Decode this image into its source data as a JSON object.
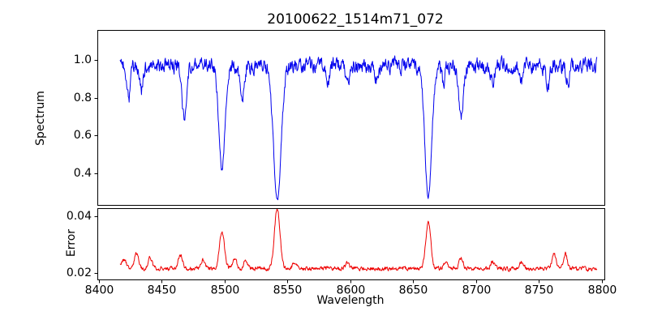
{
  "chart_data": [
    {
      "type": "line",
      "title": "20100622_1514m71_072",
      "ylabel": "Spectrum",
      "color": "#0000ee",
      "xlim": [
        8399,
        8802
      ],
      "ylim": [
        0.23,
        1.16
      ],
      "x_range": [
        8417,
        8796
      ],
      "ytick_values": [
        0.4,
        0.6,
        0.8,
        1.0
      ],
      "ytick_labels": [
        "0.4",
        "0.6",
        "0.8",
        "1.0"
      ],
      "continuum": 0.97,
      "noise_sigma": 0.022,
      "absorption_lines": [
        {
          "center": 8424,
          "min": 0.8,
          "width": 1.4
        },
        {
          "center": 8434,
          "min": 0.84,
          "width": 1.3
        },
        {
          "center": 8468,
          "min": 0.7,
          "width": 1.8
        },
        {
          "center": 8498,
          "min": 0.42,
          "width": 2.4
        },
        {
          "center": 8514,
          "min": 0.79,
          "width": 1.6
        },
        {
          "center": 8542,
          "min": 0.25,
          "width": 3.0
        },
        {
          "center": 8582,
          "min": 0.88,
          "width": 1.3
        },
        {
          "center": 8598,
          "min": 0.86,
          "width": 1.4
        },
        {
          "center": 8621,
          "min": 0.89,
          "width": 1.2
        },
        {
          "center": 8662,
          "min": 0.27,
          "width": 2.7
        },
        {
          "center": 8674,
          "min": 0.87,
          "width": 1.2
        },
        {
          "center": 8688,
          "min": 0.69,
          "width": 1.8
        },
        {
          "center": 8713,
          "min": 0.88,
          "width": 1.3
        },
        {
          "center": 8736,
          "min": 0.89,
          "width": 1.2
        },
        {
          "center": 8757,
          "min": 0.86,
          "width": 1.4
        },
        {
          "center": 8773,
          "min": 0.88,
          "width": 1.2
        }
      ]
    },
    {
      "type": "line",
      "xlabel": "Wavelength",
      "ylabel": "Error",
      "color": "#ee0000",
      "xlim": [
        8399,
        8802
      ],
      "ylim": [
        0.0177,
        0.0427
      ],
      "x_range": [
        8417,
        8796
      ],
      "ytick_values": [
        0.02,
        0.04
      ],
      "ytick_labels": [
        "0.02",
        "0.04"
      ],
      "xtick_values": [
        8400,
        8450,
        8500,
        8550,
        8600,
        8650,
        8700,
        8750,
        8800
      ],
      "xtick_labels": [
        "8400",
        "8450",
        "8500",
        "8550",
        "8600",
        "8650",
        "8700",
        "8750",
        "8800"
      ],
      "baseline": 0.0215,
      "noise_sigma": 0.0004,
      "peaks": [
        {
          "center": 8420,
          "max": 0.0245,
          "width": 2.0
        },
        {
          "center": 8430,
          "max": 0.027,
          "width": 1.6
        },
        {
          "center": 8441,
          "max": 0.0253,
          "width": 1.5
        },
        {
          "center": 8465,
          "max": 0.0262,
          "width": 1.8
        },
        {
          "center": 8483,
          "max": 0.0248,
          "width": 1.5
        },
        {
          "center": 8498,
          "max": 0.0345,
          "width": 2.0
        },
        {
          "center": 8508,
          "max": 0.0252,
          "width": 1.5
        },
        {
          "center": 8517,
          "max": 0.0247,
          "width": 1.5
        },
        {
          "center": 8542,
          "max": 0.0425,
          "width": 2.2
        },
        {
          "center": 8556,
          "max": 0.024,
          "width": 1.6
        },
        {
          "center": 8598,
          "max": 0.0238,
          "width": 1.4
        },
        {
          "center": 8662,
          "max": 0.0376,
          "width": 2.0
        },
        {
          "center": 8676,
          "max": 0.0242,
          "width": 1.4
        },
        {
          "center": 8688,
          "max": 0.0254,
          "width": 1.6
        },
        {
          "center": 8713,
          "max": 0.0242,
          "width": 1.4
        },
        {
          "center": 8736,
          "max": 0.024,
          "width": 1.4
        },
        {
          "center": 8762,
          "max": 0.0264,
          "width": 1.7
        },
        {
          "center": 8771,
          "max": 0.0268,
          "width": 1.5
        }
      ]
    }
  ],
  "style": {
    "background": "#ffffff",
    "axis_color": "#000000",
    "text_color": "#000000"
  }
}
